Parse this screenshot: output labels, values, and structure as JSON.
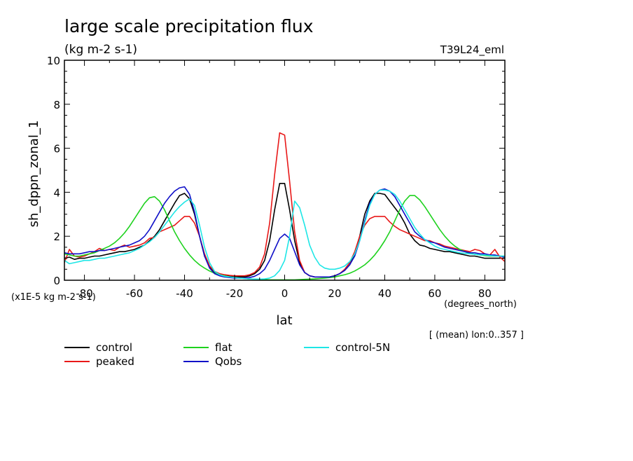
{
  "title": "large scale precipitation flux",
  "units": "(kg m-2 s-1)",
  "experiment": "T39L24_eml",
  "scale_note": "(x1E-5 kg m-2 s-1)",
  "x_units": "(degrees_north)",
  "region_note": "[ (mean) lon:0..357 ]",
  "chart_data": {
    "type": "line",
    "xlabel": "lat",
    "ylabel": "sh_dppn_zonal_1",
    "xlim": [
      -88,
      88
    ],
    "ylim": [
      0,
      10
    ],
    "xticks": [
      -80,
      -60,
      -40,
      -20,
      0,
      20,
      40,
      60,
      80
    ],
    "xtick_labels": [
      "-80",
      "-60",
      "-40",
      "-20",
      "0",
      "20",
      "40",
      "60",
      "80"
    ],
    "yticks": [
      0,
      2,
      4,
      6,
      8,
      10
    ],
    "ytick_labels": [
      "0",
      "2",
      "4",
      "6",
      "8",
      "10"
    ],
    "legend": "bottom",
    "series": [
      {
        "name": "control",
        "color": "#000000",
        "x": [
          -88,
          -86,
          -84,
          -82,
          -80,
          -78,
          -76,
          -74,
          -72,
          -70,
          -68,
          -66,
          -64,
          -62,
          -60,
          -58,
          -56,
          -54,
          -52,
          -50,
          -48,
          -46,
          -44,
          -42,
          -40,
          -38,
          -36,
          -34,
          -32,
          -30,
          -28,
          -26,
          -24,
          -22,
          -20,
          -18,
          -16,
          -14,
          -12,
          -10,
          -8,
          -6,
          -4,
          -2,
          0,
          2,
          4,
          6,
          8,
          10,
          12,
          14,
          16,
          18,
          20,
          22,
          24,
          26,
          28,
          30,
          32,
          34,
          36,
          38,
          40,
          42,
          44,
          46,
          48,
          50,
          52,
          54,
          56,
          58,
          60,
          62,
          64,
          66,
          68,
          70,
          72,
          74,
          76,
          78,
          80,
          82,
          84,
          86,
          88
        ],
        "y": [
          1.0,
          1.05,
          0.95,
          1.0,
          1.0,
          1.05,
          1.1,
          1.1,
          1.15,
          1.2,
          1.25,
          1.3,
          1.3,
          1.35,
          1.4,
          1.5,
          1.6,
          1.8,
          2.0,
          2.3,
          2.7,
          3.1,
          3.5,
          3.85,
          3.95,
          3.7,
          3.0,
          2.0,
          1.1,
          0.6,
          0.35,
          0.25,
          0.2,
          0.18,
          0.15,
          0.15,
          0.15,
          0.2,
          0.3,
          0.5,
          0.9,
          1.8,
          3.2,
          4.4,
          4.4,
          3.2,
          1.8,
          0.8,
          0.35,
          0.2,
          0.15,
          0.15,
          0.15,
          0.15,
          0.2,
          0.3,
          0.45,
          0.7,
          1.2,
          2.0,
          3.0,
          3.6,
          3.95,
          3.95,
          3.9,
          3.6,
          3.3,
          3.0,
          2.6,
          2.1,
          1.8,
          1.6,
          1.55,
          1.45,
          1.4,
          1.35,
          1.3,
          1.3,
          1.25,
          1.2,
          1.15,
          1.1,
          1.1,
          1.05,
          1.0,
          1.0,
          1.0,
          1.0,
          1.0
        ]
      },
      {
        "name": "peaked",
        "color": "#e81818",
        "x": [
          -88,
          -86,
          -84,
          -82,
          -80,
          -78,
          -76,
          -74,
          -72,
          -70,
          -68,
          -66,
          -64,
          -62,
          -60,
          -58,
          -56,
          -54,
          -52,
          -50,
          -48,
          -46,
          -44,
          -42,
          -40,
          -38,
          -36,
          -34,
          -32,
          -30,
          -28,
          -26,
          -24,
          -22,
          -20,
          -18,
          -16,
          -14,
          -12,
          -10,
          -8,
          -6,
          -4,
          -2,
          0,
          2,
          4,
          6,
          8,
          10,
          12,
          14,
          16,
          18,
          20,
          22,
          24,
          26,
          28,
          30,
          32,
          34,
          36,
          38,
          40,
          42,
          44,
          46,
          48,
          50,
          52,
          54,
          56,
          58,
          60,
          62,
          64,
          66,
          68,
          70,
          72,
          74,
          76,
          78,
          80,
          82,
          84,
          86,
          88
        ],
        "y": [
          0.8,
          1.4,
          1.1,
          1.05,
          1.1,
          1.2,
          1.3,
          1.45,
          1.35,
          1.4,
          1.35,
          1.5,
          1.6,
          1.5,
          1.55,
          1.6,
          1.7,
          1.9,
          1.95,
          2.2,
          2.3,
          2.4,
          2.5,
          2.7,
          2.9,
          2.9,
          2.6,
          2.0,
          1.2,
          0.65,
          0.4,
          0.3,
          0.25,
          0.22,
          0.2,
          0.2,
          0.2,
          0.25,
          0.35,
          0.6,
          1.2,
          2.6,
          4.8,
          6.7,
          6.6,
          4.5,
          2.2,
          0.9,
          0.35,
          0.2,
          0.15,
          0.15,
          0.15,
          0.15,
          0.2,
          0.3,
          0.5,
          0.8,
          1.3,
          2.0,
          2.5,
          2.8,
          2.9,
          2.9,
          2.9,
          2.65,
          2.45,
          2.3,
          2.2,
          2.1,
          2.0,
          1.9,
          1.8,
          1.8,
          1.7,
          1.65,
          1.55,
          1.5,
          1.45,
          1.4,
          1.35,
          1.3,
          1.4,
          1.35,
          1.2,
          1.15,
          1.4,
          1.05,
          0.85
        ]
      },
      {
        "name": "flat",
        "color": "#1ed21e",
        "x": [
          -88,
          -86,
          -84,
          -82,
          -80,
          -78,
          -76,
          -74,
          -72,
          -70,
          -68,
          -66,
          -64,
          -62,
          -60,
          -58,
          -56,
          -54,
          -52,
          -50,
          -48,
          -46,
          -44,
          -42,
          -40,
          -38,
          -36,
          -34,
          -32,
          -30,
          -28,
          -26,
          -24,
          -22,
          -20,
          -18,
          -16,
          -14,
          -12,
          -10,
          -8,
          -6,
          -4,
          -2,
          0,
          2,
          4,
          6,
          8,
          10,
          12,
          14,
          16,
          18,
          20,
          22,
          24,
          26,
          28,
          30,
          32,
          34,
          36,
          38,
          40,
          42,
          44,
          46,
          48,
          50,
          52,
          54,
          56,
          58,
          60,
          62,
          64,
          66,
          68,
          70,
          72,
          74,
          76,
          78,
          80,
          82,
          84,
          86,
          88
        ],
        "y": [
          1.2,
          1.15,
          1.1,
          1.1,
          1.15,
          1.2,
          1.25,
          1.35,
          1.45,
          1.55,
          1.7,
          1.9,
          2.15,
          2.45,
          2.8,
          3.15,
          3.5,
          3.75,
          3.8,
          3.6,
          3.2,
          2.7,
          2.2,
          1.8,
          1.45,
          1.15,
          0.9,
          0.7,
          0.55,
          0.42,
          0.32,
          0.25,
          0.2,
          0.15,
          0.12,
          0.1,
          0.08,
          0.06,
          0.05,
          0.04,
          0.03,
          0.02,
          0.02,
          0.02,
          0.02,
          0.02,
          0.02,
          0.03,
          0.04,
          0.05,
          0.06,
          0.08,
          0.1,
          0.12,
          0.15,
          0.2,
          0.25,
          0.32,
          0.42,
          0.55,
          0.7,
          0.9,
          1.15,
          1.45,
          1.8,
          2.2,
          2.7,
          3.2,
          3.6,
          3.85,
          3.85,
          3.65,
          3.35,
          3.0,
          2.65,
          2.3,
          2.0,
          1.75,
          1.55,
          1.4,
          1.3,
          1.22,
          1.18,
          1.15,
          1.12,
          1.1,
          1.1,
          1.1,
          1.1
        ]
      },
      {
        "name": "Qobs",
        "color": "#1010c8",
        "x": [
          -88,
          -86,
          -84,
          -82,
          -80,
          -78,
          -76,
          -74,
          -72,
          -70,
          -68,
          -66,
          -64,
          -62,
          -60,
          -58,
          -56,
          -54,
          -52,
          -50,
          -48,
          -46,
          -44,
          -42,
          -40,
          -38,
          -36,
          -34,
          -32,
          -30,
          -28,
          -26,
          -24,
          -22,
          -20,
          -18,
          -16,
          -14,
          -12,
          -10,
          -8,
          -6,
          -4,
          -2,
          0,
          2,
          4,
          6,
          8,
          10,
          12,
          14,
          16,
          18,
          20,
          22,
          24,
          26,
          28,
          30,
          32,
          34,
          36,
          38,
          40,
          42,
          44,
          46,
          48,
          50,
          52,
          54,
          56,
          58,
          60,
          62,
          64,
          66,
          68,
          70,
          72,
          74,
          76,
          78,
          80,
          82,
          84,
          86,
          88
        ],
        "y": [
          1.25,
          1.2,
          1.2,
          1.2,
          1.25,
          1.3,
          1.3,
          1.35,
          1.35,
          1.4,
          1.45,
          1.5,
          1.55,
          1.6,
          1.7,
          1.8,
          2.0,
          2.3,
          2.7,
          3.1,
          3.5,
          3.8,
          4.05,
          4.2,
          4.25,
          3.9,
          3.1,
          2.0,
          1.1,
          0.55,
          0.3,
          0.2,
          0.15,
          0.12,
          0.1,
          0.1,
          0.1,
          0.12,
          0.18,
          0.3,
          0.5,
          0.9,
          1.4,
          1.9,
          2.1,
          1.9,
          1.3,
          0.7,
          0.35,
          0.2,
          0.15,
          0.15,
          0.15,
          0.15,
          0.2,
          0.3,
          0.45,
          0.7,
          1.1,
          1.8,
          2.7,
          3.5,
          3.9,
          4.1,
          4.15,
          4.05,
          3.8,
          3.4,
          3.0,
          2.6,
          2.2,
          2.0,
          1.85,
          1.75,
          1.7,
          1.6,
          1.5,
          1.45,
          1.4,
          1.35,
          1.3,
          1.25,
          1.25,
          1.2,
          1.2,
          1.15,
          1.15,
          1.1,
          1.05
        ]
      },
      {
        "name": "control-5N",
        "color": "#1ee6e6",
        "x": [
          -88,
          -86,
          -84,
          -82,
          -80,
          -78,
          -76,
          -74,
          -72,
          -70,
          -68,
          -66,
          -64,
          -62,
          -60,
          -58,
          -56,
          -54,
          -52,
          -50,
          -48,
          -46,
          -44,
          -42,
          -40,
          -38,
          -36,
          -34,
          -32,
          -30,
          -28,
          -26,
          -24,
          -22,
          -20,
          -18,
          -16,
          -14,
          -12,
          -10,
          -8,
          -6,
          -4,
          -2,
          0,
          2,
          4,
          6,
          8,
          10,
          12,
          14,
          16,
          18,
          20,
          22,
          24,
          26,
          28,
          30,
          32,
          34,
          36,
          38,
          40,
          42,
          44,
          46,
          48,
          50,
          52,
          54,
          56,
          58,
          60,
          62,
          64,
          66,
          68,
          70,
          72,
          74,
          76,
          78,
          80,
          82,
          84,
          86,
          88
        ],
        "y": [
          0.9,
          0.75,
          0.8,
          0.85,
          0.9,
          0.9,
          0.95,
          1.0,
          1.0,
          1.05,
          1.1,
          1.15,
          1.2,
          1.25,
          1.35,
          1.45,
          1.6,
          1.75,
          1.95,
          2.2,
          2.5,
          2.8,
          3.1,
          3.35,
          3.55,
          3.7,
          3.4,
          2.5,
          1.5,
          0.8,
          0.4,
          0.25,
          0.18,
          0.15,
          0.12,
          0.1,
          0.08,
          0.06,
          0.05,
          0.05,
          0.06,
          0.1,
          0.2,
          0.45,
          0.9,
          2.0,
          3.6,
          3.3,
          2.5,
          1.6,
          1.05,
          0.7,
          0.55,
          0.5,
          0.5,
          0.55,
          0.65,
          0.85,
          1.2,
          1.8,
          2.6,
          3.4,
          3.9,
          4.1,
          4.1,
          4.05,
          3.9,
          3.6,
          3.2,
          2.8,
          2.4,
          2.1,
          1.85,
          1.7,
          1.55,
          1.45,
          1.4,
          1.35,
          1.3,
          1.25,
          1.22,
          1.2,
          1.18,
          1.15,
          1.15,
          1.12,
          1.1,
          1.1,
          1.1
        ]
      }
    ]
  }
}
